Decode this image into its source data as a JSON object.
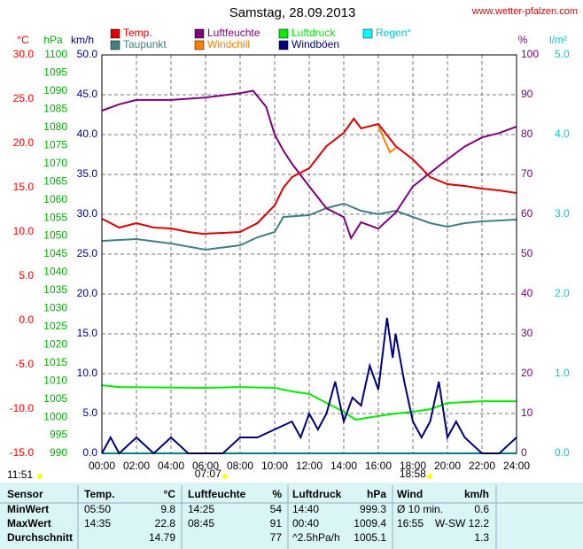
{
  "chart_data": {
    "type": "line",
    "title": "Samstag, 28.09.2013",
    "source": "www.wetter-pfalzen.com",
    "xlim": [
      0,
      24
    ],
    "xticks": [
      {
        "value": 0,
        "label": "00:00"
      },
      {
        "value": 2,
        "label": "02:00"
      },
      {
        "value": 4,
        "label": "04:00"
      },
      {
        "value": 6,
        "label": "06:00"
      },
      {
        "value": 8,
        "label": "08:00"
      },
      {
        "value": 10,
        "label": "10:00"
      },
      {
        "value": 12,
        "label": "12:00"
      },
      {
        "value": 14,
        "label": "14:00"
      },
      {
        "value": 16,
        "label": "16:00"
      },
      {
        "value": 18,
        "label": "18:00"
      },
      {
        "value": 20,
        "label": "20:00"
      },
      {
        "value": 22,
        "label": "22:00"
      },
      {
        "value": 24,
        "label": "24:00"
      }
    ],
    "grid": true,
    "daylength": "11:51",
    "sunrise": "07:07",
    "sunset": "18:58",
    "axes": [
      {
        "label": "°C",
        "color": "#ff0000",
        "ylim": [
          -15,
          30
        ],
        "yticks": [
          {
            "value": 30,
            "label": "30.0"
          },
          {
            "value": 25,
            "label": "25.0"
          },
          {
            "value": 20,
            "label": "20.0"
          },
          {
            "value": 15,
            "label": "15.0"
          },
          {
            "value": 10,
            "label": "10.0"
          },
          {
            "value": 5,
            "label": "5.0"
          },
          {
            "value": 0,
            "label": "0.0"
          },
          {
            "value": -5,
            "label": "-5.0"
          },
          {
            "value": -10,
            "label": "-10.0"
          },
          {
            "value": -15,
            "label": "-15.0"
          }
        ]
      },
      {
        "label": "hPa",
        "color": "#00b000",
        "ylim": [
          990,
          1100
        ],
        "yticks": [
          1100,
          1095,
          1090,
          1085,
          1080,
          1075,
          1070,
          1065,
          1060,
          1055,
          1050,
          1045,
          1040,
          1035,
          1030,
          1025,
          1020,
          1015,
          1010,
          1005,
          1000,
          995,
          990
        ]
      },
      {
        "label": "km/h",
        "color": "#000080",
        "ylim": [
          0,
          50
        ],
        "yticks": [
          {
            "value": 50,
            "label": "50.0"
          },
          {
            "value": 45,
            "label": "45.0"
          },
          {
            "value": 40,
            "label": "40.0"
          },
          {
            "value": 35,
            "label": "35.0"
          },
          {
            "value": 30,
            "label": "30.0"
          },
          {
            "value": 25,
            "label": "25.0"
          },
          {
            "value": 20,
            "label": "20.0"
          },
          {
            "value": 15,
            "label": "15.0"
          },
          {
            "value": 10,
            "label": "10.0"
          },
          {
            "value": 5,
            "label": "5.0"
          },
          {
            "value": 0,
            "label": "0.0"
          }
        ],
        "grid": true
      },
      {
        "label": "%",
        "color": "#800080",
        "ylim": [
          0,
          100
        ],
        "yticks": [
          100,
          90,
          80,
          70,
          60,
          50,
          40,
          30,
          20,
          10,
          0
        ]
      },
      {
        "label": "l/m²",
        "color": "#00d0d0",
        "ylim": [
          0,
          5
        ],
        "yticks": [
          {
            "value": 5,
            "label": "5.0"
          },
          {
            "value": 4,
            "label": "4.0"
          },
          {
            "value": 3,
            "label": "3.0"
          },
          {
            "value": 2,
            "label": "2.0"
          },
          {
            "value": 1,
            "label": "1.0"
          },
          {
            "value": 0,
            "label": "0.0"
          }
        ]
      }
    ],
    "series": [
      {
        "name": "Temp.",
        "color": "#dd0000",
        "axis": 0,
        "x": [
          0,
          1,
          2,
          3,
          4,
          5,
          5.83,
          7,
          8,
          9,
          10,
          10.5,
          11,
          12,
          13,
          14,
          14.58,
          15,
          16,
          17,
          18,
          19,
          20,
          21,
          22,
          23,
          24
        ],
        "values": [
          11.5,
          10.5,
          11,
          10.5,
          10.4,
          10,
          9.8,
          9.9,
          10,
          11,
          13,
          15,
          16.2,
          17.2,
          19.7,
          21.2,
          22.8,
          21.7,
          22.2,
          19.7,
          18.2,
          16.2,
          15.4,
          15.2,
          14.9,
          14.7,
          14.4
        ]
      },
      {
        "name": "Luftfeuchte",
        "color": "#800080",
        "axis": 3,
        "x": [
          0,
          1,
          2,
          4,
          6,
          8,
          8.75,
          9.5,
          10,
          10.5,
          11,
          12,
          13,
          14,
          14.42,
          15,
          16,
          17,
          18,
          19,
          20,
          21,
          22,
          23,
          24
        ],
        "values": [
          86,
          87.6,
          88.7,
          88.7,
          89.3,
          90.4,
          91,
          87,
          80,
          76,
          72.7,
          67,
          61.5,
          59.3,
          54,
          58,
          56.4,
          60.4,
          67,
          70.4,
          73.8,
          77,
          79.3,
          80.4,
          82
        ]
      },
      {
        "name": "Luftdruck",
        "color": "#00ee00",
        "axis": 1,
        "x": [
          0,
          1,
          6,
          8,
          10,
          11,
          12,
          13,
          14,
          14.67,
          16,
          17,
          18,
          19,
          20,
          22,
          24
        ],
        "values": [
          1008.8,
          1008.3,
          1008.1,
          1008.3,
          1008.1,
          1007.1,
          1006.4,
          1003.9,
          1001.5,
          999.3,
          1000.3,
          1001,
          1001.5,
          1002.2,
          1003.9,
          1004.4,
          1004.4
        ]
      },
      {
        "name": "Regen°",
        "color": "#00ffff",
        "axis": 4,
        "x": [
          0,
          24
        ],
        "values": [
          0,
          0
        ]
      },
      {
        "name": "Taupunkt",
        "color": "#408080",
        "axis": 0,
        "x": [
          0,
          2,
          4,
          6,
          8,
          9,
          10,
          10.5,
          12,
          13,
          14,
          15,
          16,
          17,
          18,
          19,
          20,
          21,
          22,
          24
        ],
        "values": [
          9,
          9.2,
          8.7,
          8,
          8.5,
          9.4,
          10,
          11.7,
          11.9,
          12.7,
          13.2,
          12.4,
          12,
          12.4,
          11.7,
          11,
          10.6,
          11,
          11.2,
          11.4
        ]
      },
      {
        "name": "Windchill",
        "color": "#ff8000",
        "axis": 0,
        "x": [
          16,
          16.33,
          16.67,
          17
        ],
        "values": [
          22,
          20.5,
          19,
          19.5
        ]
      },
      {
        "name": "Windböen",
        "color": "#000080",
        "axis": 2,
        "x": [
          0,
          0.5,
          1,
          2,
          3,
          4,
          5,
          6,
          7,
          8,
          9,
          10,
          11,
          11.5,
          12,
          12.5,
          13,
          13.5,
          14,
          14.5,
          15,
          15.5,
          16,
          16.5,
          16.83,
          17,
          17.5,
          18,
          18.5,
          19,
          19.5,
          20,
          20.5,
          21,
          22,
          23,
          24
        ],
        "values": [
          0,
          2,
          0,
          2,
          0,
          2,
          0,
          0,
          0,
          2,
          2,
          3,
          4,
          2,
          5,
          3,
          5,
          9,
          4,
          7,
          6,
          11,
          8,
          17,
          12,
          15,
          9,
          4,
          2,
          4,
          9,
          2,
          4,
          2,
          0,
          0,
          2
        ]
      }
    ]
  },
  "table": {
    "header": [
      "Sensor",
      "Temp.",
      "°C",
      "Luftfeuchte",
      "%",
      "Luftdruck",
      "hPa",
      "Wind",
      "km/h"
    ],
    "rows": [
      [
        "MinWert",
        "05:50",
        "9.8",
        "14:25",
        "54",
        "14:40",
        "999.3",
        "Ø 10 min.",
        "0.6"
      ],
      [
        "MaxWert",
        "14:35",
        "22.8",
        "08:45",
        "91",
        "00:40",
        "1009.4",
        "16:55",
        "W-SW 12.2"
      ],
      [
        "Durchschnitt",
        null,
        "14.79",
        null,
        "77",
        "^2.5hPa/h",
        "1005.1",
        null,
        "1.3"
      ]
    ]
  }
}
